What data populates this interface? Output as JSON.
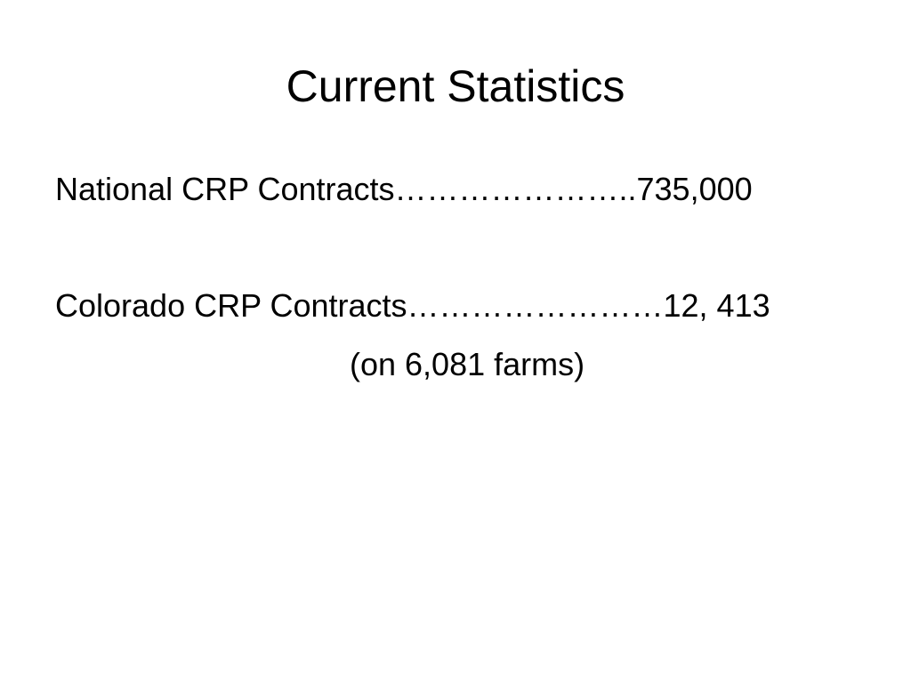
{
  "slide": {
    "title": "Current Statistics",
    "stats": [
      {
        "text": "National CRP Contracts…………………..735,000"
      },
      {
        "text": "Colorado CRP Contracts……………………12, 413"
      }
    ],
    "note": "(on 6,081 farms)"
  }
}
